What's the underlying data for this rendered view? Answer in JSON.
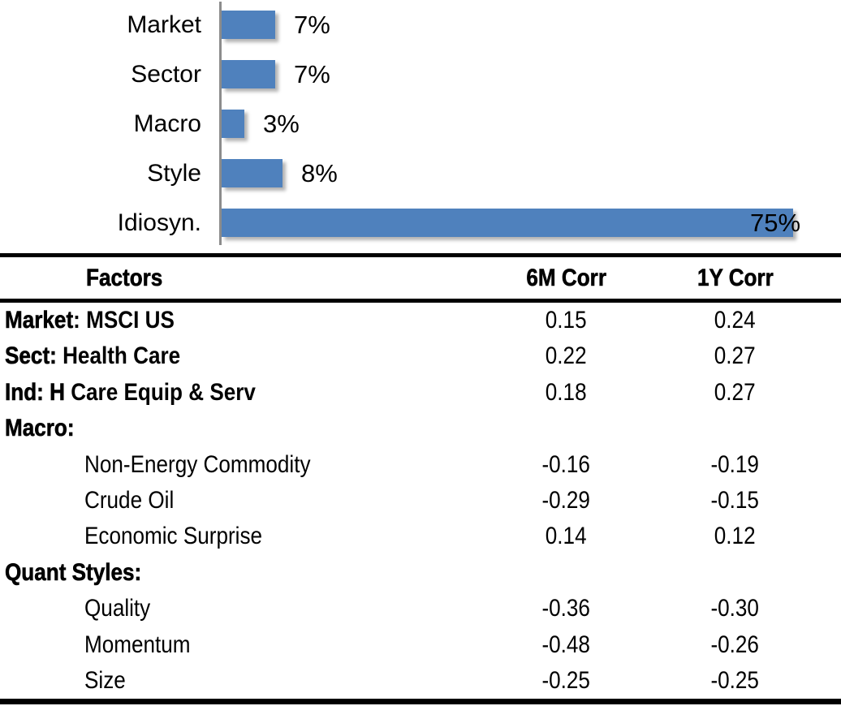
{
  "chart_data": {
    "type": "bar",
    "orientation": "horizontal",
    "title": "",
    "categories": [
      "Market",
      "Sector",
      "Macro",
      "Style",
      "Idiosyn."
    ],
    "values": [
      7,
      7,
      3,
      8,
      75
    ],
    "value_labels": [
      "7%",
      "7%",
      "3%",
      "8%",
      "75%"
    ],
    "xlim": [
      0,
      80
    ],
    "grid": false,
    "legend": false,
    "bar_color": "#4f81bd",
    "axis_color": "#8c8c8c",
    "label_color": "#000000"
  },
  "table": {
    "headers": {
      "factors": "Factors",
      "corr6m": "6M Corr",
      "corr1y": "1Y Corr"
    },
    "rows": [
      {
        "type": "mixed",
        "bold": "Market",
        "text": ": MSCI US",
        "c6": "0.15",
        "c1": "0.24"
      },
      {
        "type": "mixed",
        "bold": "Sect:",
        "text": " Health Care",
        "c6": "0.22",
        "c1": "0.27"
      },
      {
        "type": "mixed",
        "bold": "Ind: H",
        "text": " Care Equip & Serv",
        "c6": "0.18",
        "c1": "0.27"
      },
      {
        "type": "group",
        "bold": "Macro:",
        "text": "",
        "c6": "",
        "c1": ""
      },
      {
        "type": "sub",
        "bold": "",
        "text": "Non-Energy Commodity",
        "c6": "-0.16",
        "c1": "-0.19"
      },
      {
        "type": "sub",
        "bold": "",
        "text": "Crude Oil",
        "c6": "-0.29",
        "c1": "-0.15"
      },
      {
        "type": "sub",
        "bold": "",
        "text": "Economic Surprise",
        "c6": "0.14",
        "c1": "0.12"
      },
      {
        "type": "group",
        "bold": "Quant Styles:",
        "text": "",
        "c6": "",
        "c1": ""
      },
      {
        "type": "sub",
        "bold": "",
        "text": "Quality",
        "c6": "-0.36",
        "c1": "-0.30"
      },
      {
        "type": "sub",
        "bold": "",
        "text": "Momentum",
        "c6": "-0.48",
        "c1": "-0.26"
      },
      {
        "type": "sub",
        "bold": "",
        "text": "Size",
        "c6": "-0.25",
        "c1": "-0.25"
      }
    ]
  }
}
